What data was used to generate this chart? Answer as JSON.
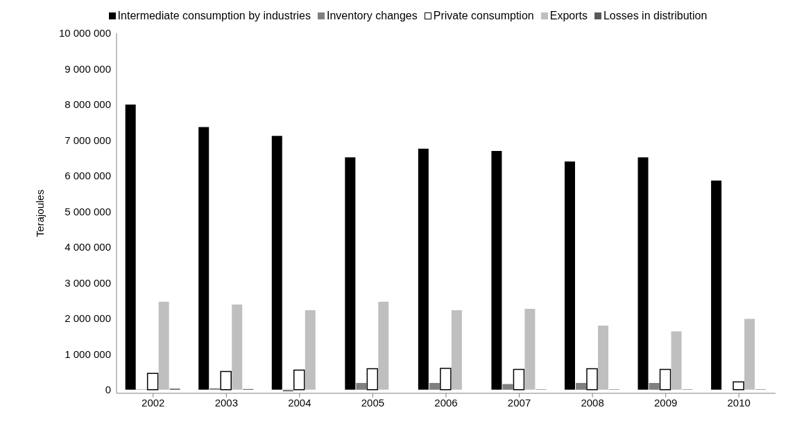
{
  "chart_data": {
    "type": "bar",
    "ylabel": "Terajoules",
    "categories": [
      "2002",
      "2003",
      "2004",
      "2005",
      "2006",
      "2007",
      "2008",
      "2009",
      "2010"
    ],
    "series": [
      {
        "name": "Intermediate consumption by industries",
        "color": "#000000",
        "values": [
          8000000,
          7370000,
          7120000,
          6520000,
          6760000,
          6700000,
          6400000,
          6520000,
          5870000
        ]
      },
      {
        "name": "Inventory changes",
        "color": "#808080",
        "values": [
          10000,
          40000,
          -50000,
          190000,
          190000,
          160000,
          190000,
          190000,
          0
        ]
      },
      {
        "name": "Private consumption",
        "color": "#ffffff",
        "values": [
          460000,
          510000,
          550000,
          590000,
          600000,
          570000,
          590000,
          570000,
          220000
        ]
      },
      {
        "name": "Exports",
        "color": "#bfbfbf",
        "values": [
          2470000,
          2390000,
          2230000,
          2470000,
          2230000,
          2270000,
          1800000,
          1640000,
          1990000
        ]
      },
      {
        "name": "Losses in distribution",
        "color": "#595959",
        "values": [
          30000,
          20000,
          0,
          0,
          0,
          10000,
          10000,
          10000,
          10000
        ]
      }
    ],
    "ylim": [
      -100000,
      10000000
    ],
    "yticks": [
      {
        "value": 0,
        "label": "0"
      },
      {
        "value": 1000000,
        "label": "1 000 000"
      },
      {
        "value": 2000000,
        "label": "2 000 000"
      },
      {
        "value": 3000000,
        "label": "3 000 000"
      },
      {
        "value": 4000000,
        "label": "4 000 000"
      },
      {
        "value": 5000000,
        "label": "5 000 000"
      },
      {
        "value": 6000000,
        "label": "6 000 000"
      },
      {
        "value": 7000000,
        "label": "7 000 000"
      },
      {
        "value": 8000000,
        "label": "8 000 000"
      },
      {
        "value": 9000000,
        "label": "9 000 000"
      },
      {
        "value": 10000000,
        "label": "10 000 000"
      }
    ],
    "grid": false,
    "legend": "top"
  }
}
